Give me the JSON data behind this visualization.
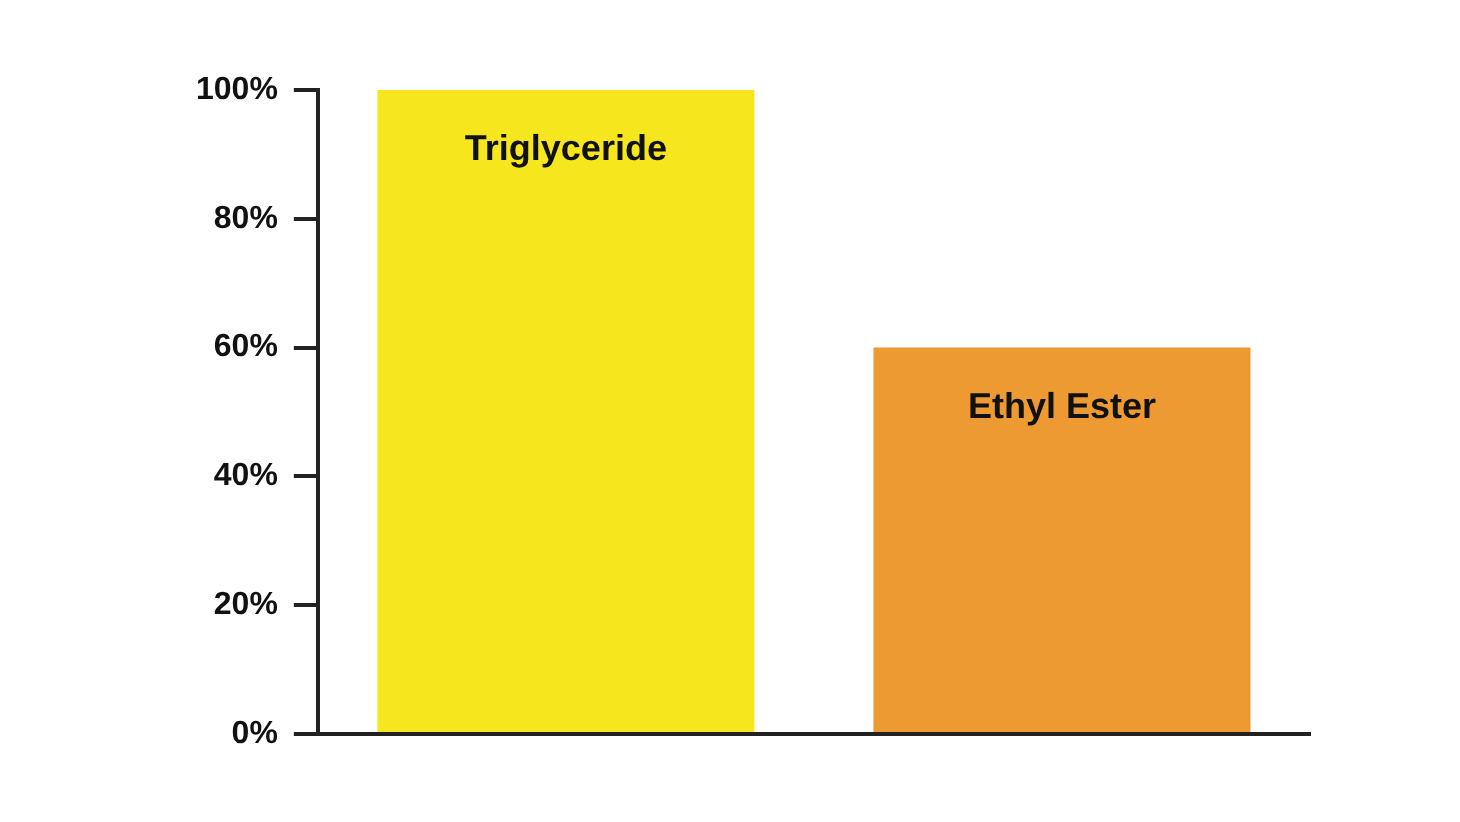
{
  "chart_data": {
    "type": "bar",
    "categories": [
      "Triglyceride",
      "Ethyl Ester"
    ],
    "values": [
      100,
      60
    ],
    "colors": [
      "#f6e61e",
      "#ee9a33"
    ],
    "ylim": [
      0,
      100
    ],
    "yticks": [
      {
        "value": 0,
        "label": "0%"
      },
      {
        "value": 20,
        "label": "20%"
      },
      {
        "value": 40,
        "label": "40%"
      },
      {
        "value": 60,
        "label": "60%"
      },
      {
        "value": 80,
        "label": "80%"
      },
      {
        "value": 100,
        "label": "100%"
      }
    ],
    "grid": false,
    "legend": false
  }
}
